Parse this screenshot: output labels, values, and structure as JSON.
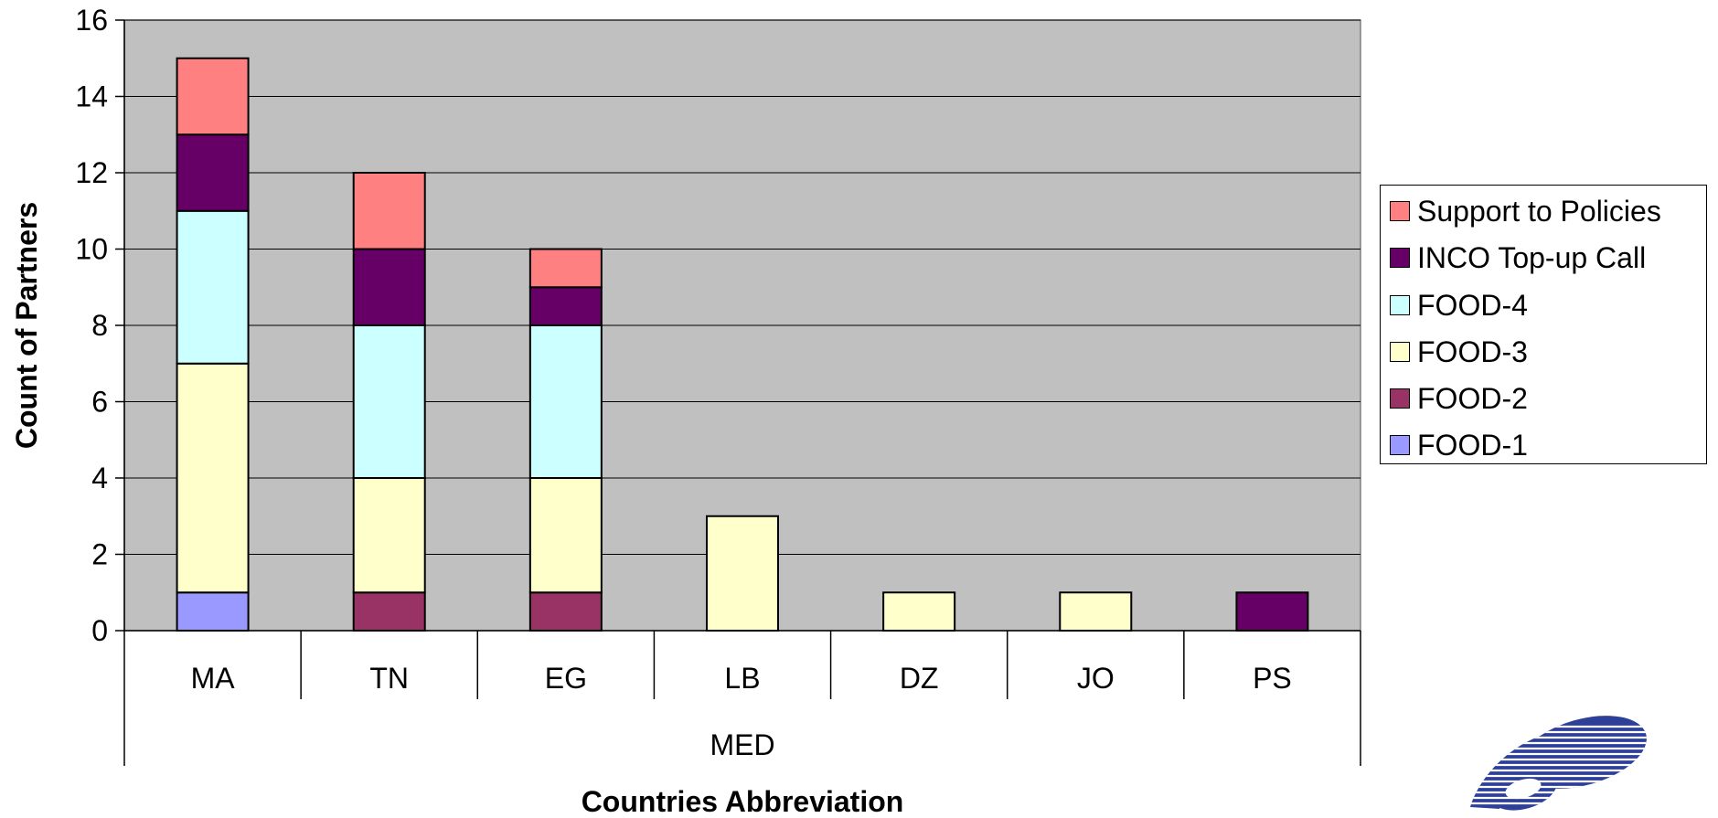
{
  "chart_data": {
    "type": "bar",
    "stacked": true,
    "categories": [
      "MA",
      "TN",
      "EG",
      "LB",
      "DZ",
      "JO",
      "PS"
    ],
    "group_label": "MED",
    "xlabel": "Countries Abbreviation",
    "ylabel": "Count of Partners",
    "ylim": [
      0,
      16
    ],
    "yticks": [
      0,
      2,
      4,
      6,
      8,
      10,
      12,
      14,
      16
    ],
    "grid": true,
    "legend_position": "right",
    "plot_background": "#C0C0C0",
    "series": [
      {
        "name": "FOOD-1",
        "color": "#9999FF",
        "values": [
          1,
          0,
          0,
          0,
          0,
          0,
          0
        ]
      },
      {
        "name": "FOOD-2",
        "color": "#993366",
        "values": [
          0,
          1,
          1,
          0,
          0,
          0,
          0
        ]
      },
      {
        "name": "FOOD-3",
        "color": "#FFFFCC",
        "values": [
          6,
          3,
          3,
          3,
          1,
          1,
          0
        ]
      },
      {
        "name": "FOOD-4",
        "color": "#CCFFFF",
        "values": [
          4,
          4,
          4,
          0,
          0,
          0,
          0
        ]
      },
      {
        "name": "INCO Top-up Call",
        "color": "#660066",
        "values": [
          2,
          2,
          1,
          0,
          0,
          0,
          1
        ]
      },
      {
        "name": "Support to Policies",
        "color": "#FF8080",
        "values": [
          2,
          2,
          1,
          0,
          0,
          0,
          0
        ]
      }
    ]
  },
  "legend": {
    "items": [
      {
        "label": "Support to Policies",
        "color": "#FF8080"
      },
      {
        "label": "INCO Top-up Call",
        "color": "#660066"
      },
      {
        "label": "FOOD-4",
        "color": "#CCFFFF"
      },
      {
        "label": "FOOD-3",
        "color": "#FFFFCC"
      },
      {
        "label": "FOOD-2",
        "color": "#993366"
      },
      {
        "label": "FOOD-1",
        "color": "#9999FF"
      }
    ]
  },
  "logo": {
    "icon": "fp6-logo-icon",
    "color": "#2E3F98"
  }
}
